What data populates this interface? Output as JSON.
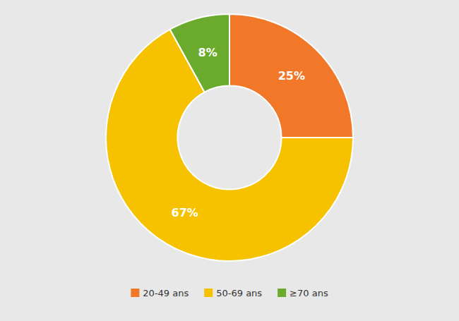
{
  "chart_data": {
    "type": "donut",
    "categories": [
      "20-49 ans",
      "50-69 ans",
      "≥70 ans"
    ],
    "values": [
      25,
      67,
      8
    ],
    "value_labels": [
      "25%",
      "67%",
      "8%"
    ],
    "colors": [
      "#F07828",
      "#F6C200",
      "#6AAB2E"
    ],
    "data_labels": true,
    "legend": "bottom"
  }
}
